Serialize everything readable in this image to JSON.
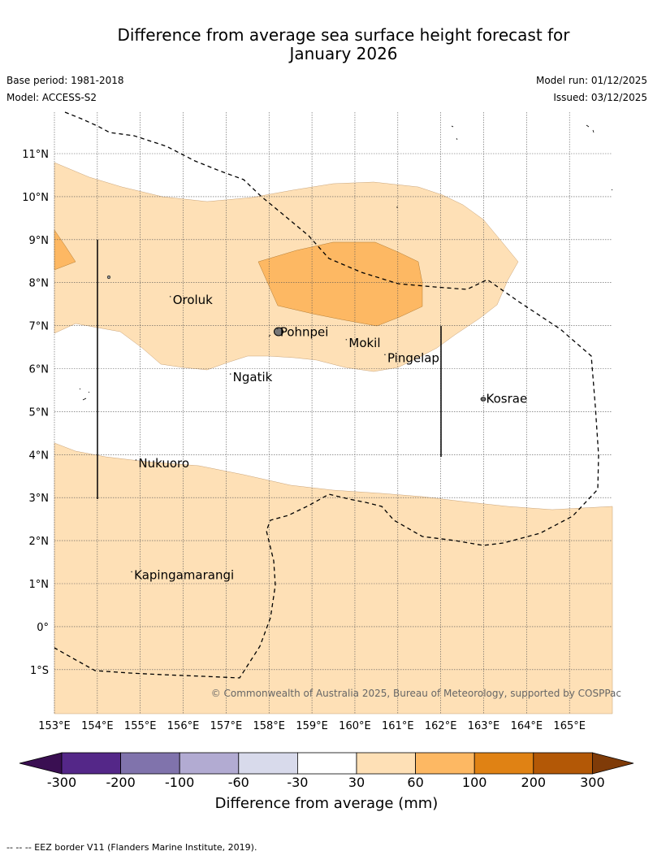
{
  "header": {
    "title_line1": "Difference from average sea surface height forecast for",
    "title_line2": "January 2026",
    "base_period": "Base period: 1981-2018",
    "model": "Model: ACCESS-S2",
    "model_run": "Model run: 01/12/2025",
    "issued": "Issued: 03/12/2025"
  },
  "map": {
    "lon_labels": [
      "153°E",
      "154°E",
      "155°E",
      "156°E",
      "157°E",
      "158°E",
      "159°E",
      "160°E",
      "161°E",
      "162°E",
      "163°E",
      "164°E",
      "165°E"
    ],
    "lat_labels": [
      "11°N",
      "10°N",
      "9°N",
      "8°N",
      "7°N",
      "6°N",
      "5°N",
      "4°N",
      "3°N",
      "2°N",
      "1°N",
      "0°",
      "1°S"
    ],
    "places": [
      {
        "name": "Oroluk",
        "lon": 155.7,
        "lat": 7.6
      },
      {
        "name": "Pohnpei",
        "lon": 158.2,
        "lat": 6.85
      },
      {
        "name": "Mokil",
        "lon": 159.8,
        "lat": 6.6
      },
      {
        "name": "Pingelap",
        "lon": 160.7,
        "lat": 6.25
      },
      {
        "name": "Ngatik",
        "lon": 157.1,
        "lat": 5.8
      },
      {
        "name": "Kosrae",
        "lon": 163.0,
        "lat": 5.3
      },
      {
        "name": "Nukuoro",
        "lon": 154.9,
        "lat": 3.8
      },
      {
        "name": "Kapingamarangi",
        "lon": 154.8,
        "lat": 1.2
      }
    ],
    "copyright": "© Commonwealth of Australia 2025, Bureau of Meteorology, supported by COSPPac"
  },
  "legend": {
    "ticks": [
      "-300",
      "-200",
      "-100",
      "-60",
      "-30",
      "30",
      "60",
      "100",
      "200",
      "300"
    ],
    "colors": [
      "#3a0f52",
      "#542788",
      "#8073ac",
      "#b2abd2",
      "#d8daeb",
      "#ffffff",
      "#fee0b6",
      "#fdb863",
      "#e08214",
      "#b35806",
      "#7f3b08"
    ],
    "title": "Difference from average (mm)"
  },
  "footnote": "--  --  -- EEZ border V11 (Flanders Marine Institute, 2019)."
}
